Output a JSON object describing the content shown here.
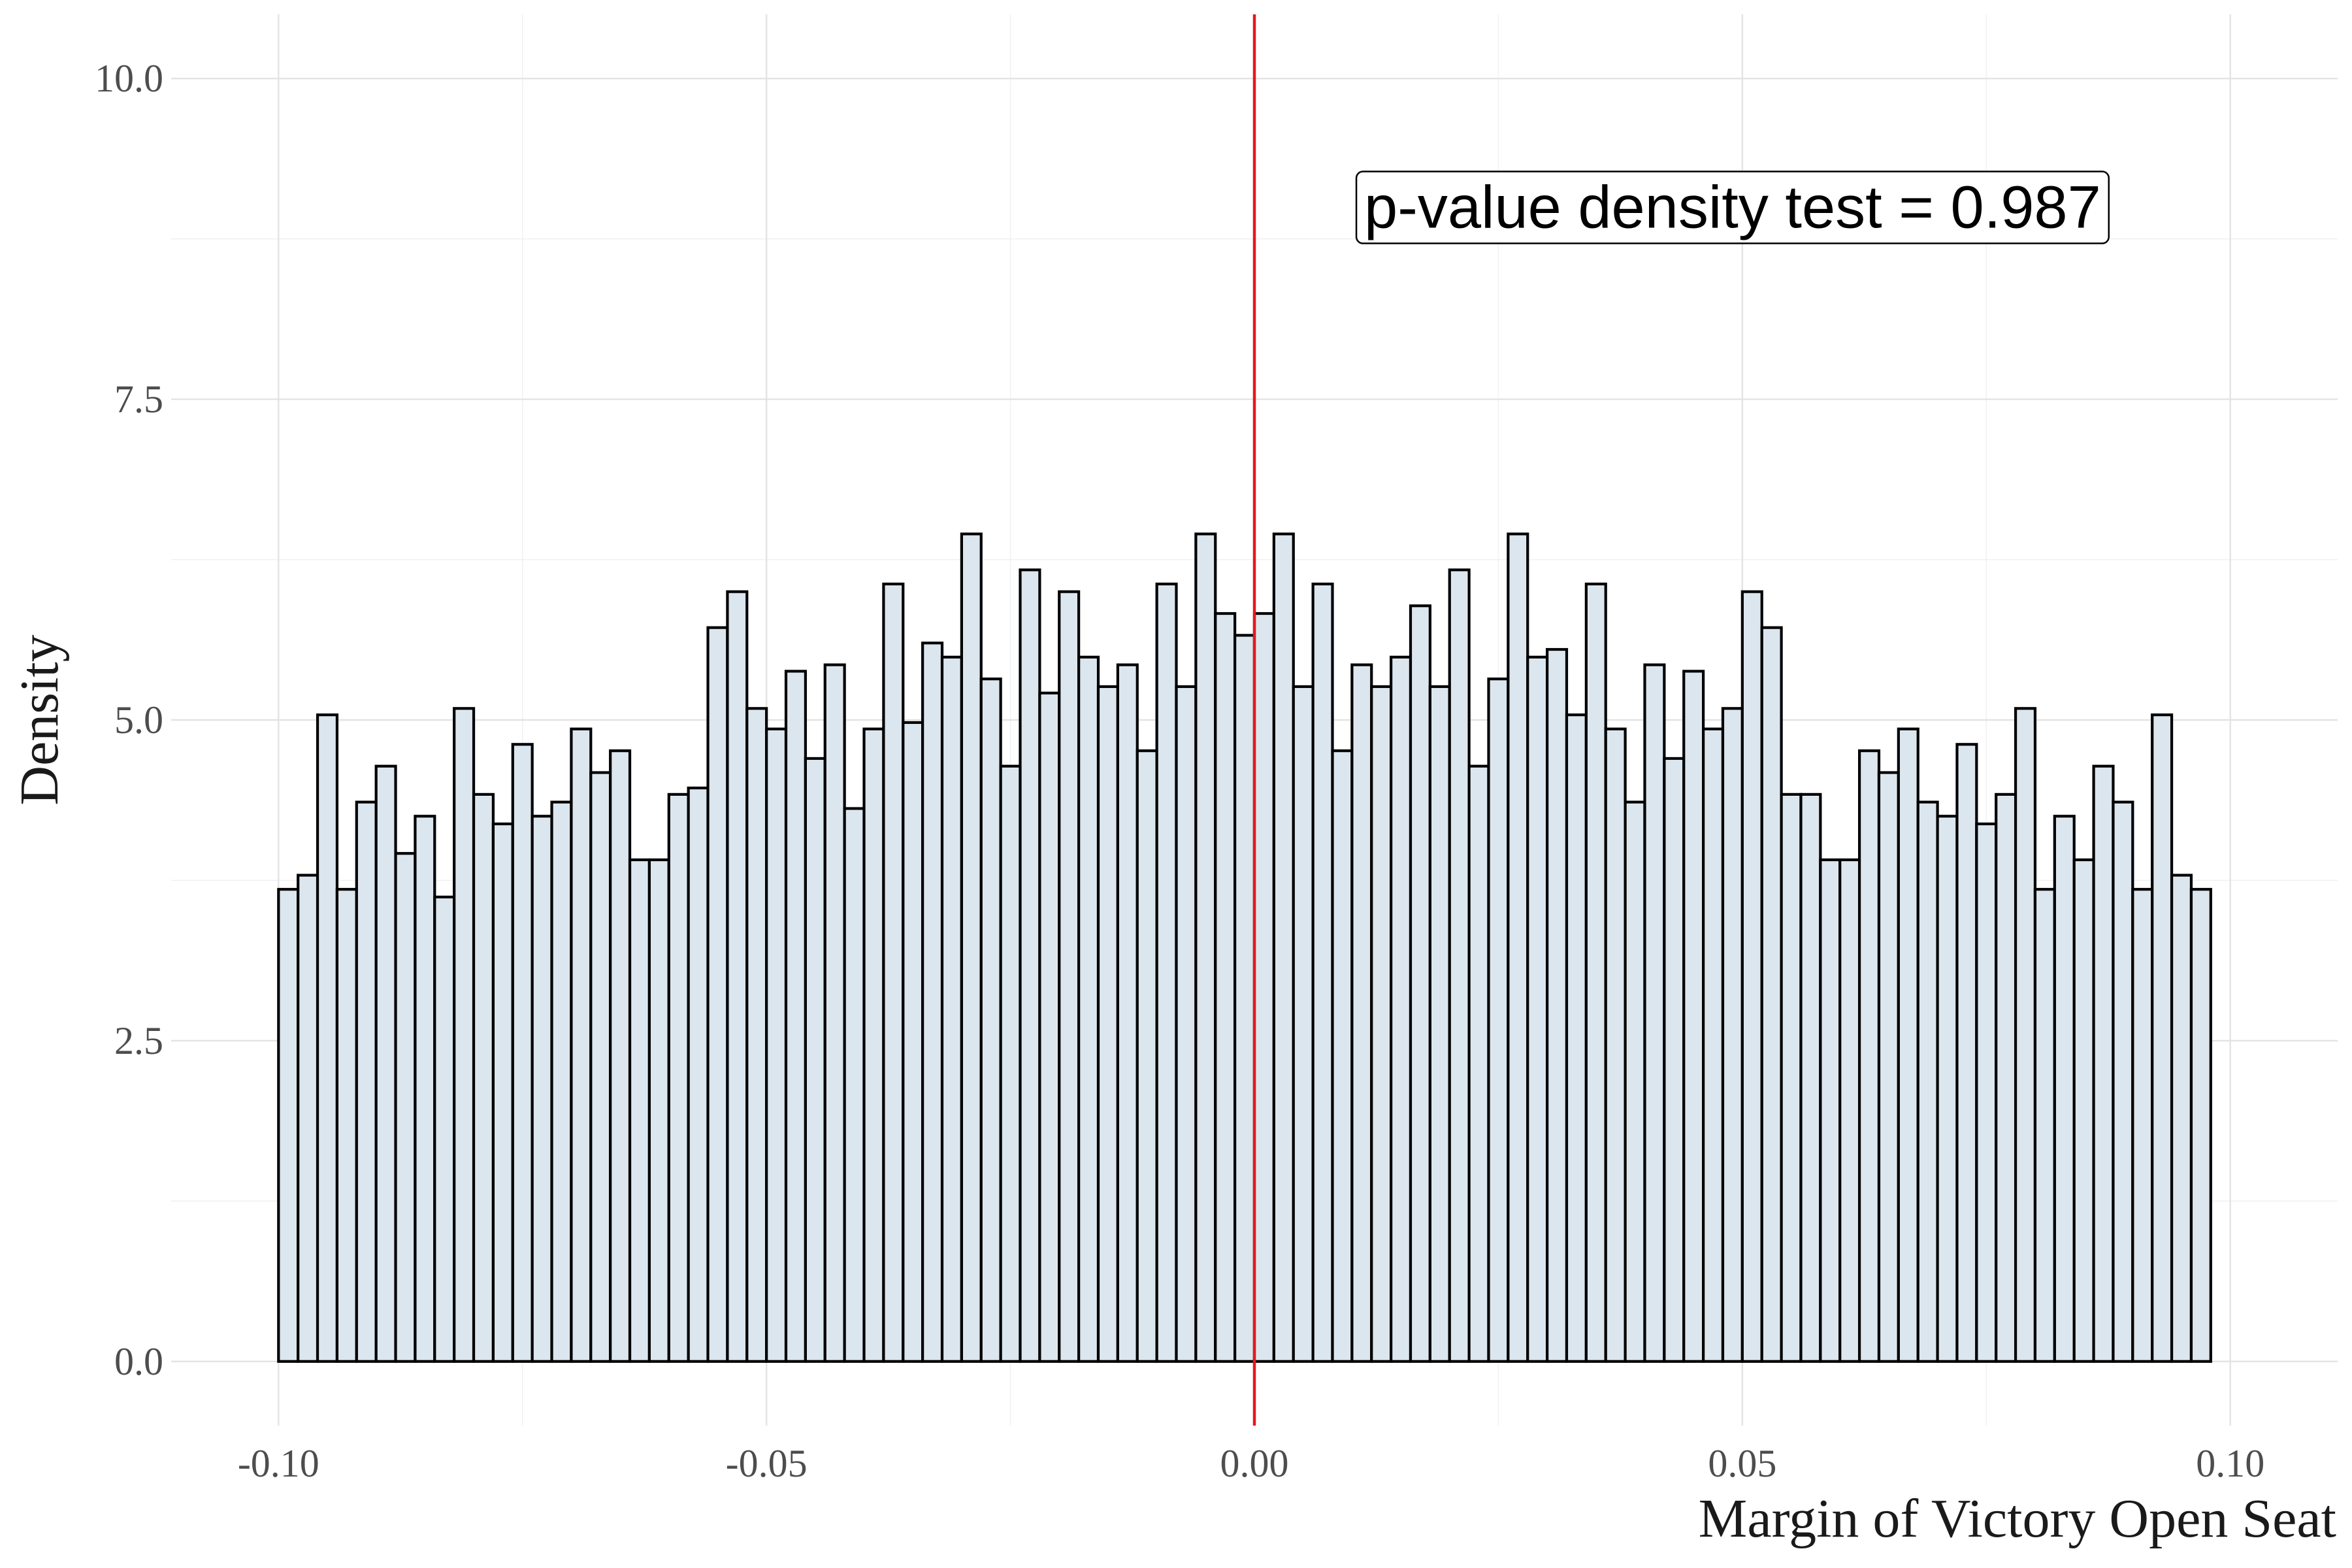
{
  "chart_data": {
    "type": "bar",
    "title": "",
    "xlabel": "Margin of Victory Open Seat",
    "ylabel": "Density",
    "xlim": [
      -0.111,
      0.111
    ],
    "ylim": [
      -0.5,
      10.5
    ],
    "x_ticks": [
      -0.1,
      -0.05,
      0.0,
      0.05,
      0.1
    ],
    "x_tick_labels": [
      "-0.10",
      "-0.05",
      "0.00",
      "0.05",
      "0.10"
    ],
    "y_ticks": [
      0,
      2.5,
      5,
      7.5,
      10
    ],
    "y_tick_labels": [
      "0.0",
      "2.5",
      "5.0",
      "7.5",
      "10.0"
    ],
    "grid": true,
    "bin_start": -0.1,
    "bin_width": 0.002,
    "values": [
      3.68,
      3.79,
      5.04,
      3.68,
      4.36,
      4.64,
      3.96,
      4.25,
      3.62,
      5.09,
      4.42,
      4.19,
      4.81,
      4.25,
      4.36,
      4.93,
      4.59,
      4.76,
      3.91,
      3.91,
      4.42,
      4.47,
      5.72,
      6.0,
      5.09,
      4.93,
      5.38,
      4.7,
      5.43,
      4.31,
      4.93,
      6.06,
      4.98,
      5.6,
      5.49,
      6.45,
      5.32,
      4.64,
      6.17,
      5.21,
      6.0,
      5.49,
      5.26,
      5.43,
      4.76,
      6.06,
      5.26,
      6.45,
      5.83,
      5.66,
      5.83,
      6.45,
      5.26,
      6.06,
      4.76,
      5.43,
      5.26,
      5.49,
      5.89,
      5.26,
      6.17,
      4.64,
      5.32,
      6.45,
      5.49,
      5.55,
      5.04,
      6.06,
      4.93,
      4.36,
      5.43,
      4.7,
      5.38,
      4.93,
      5.09,
      6.0,
      5.72,
      4.42,
      4.42,
      3.91,
      3.91,
      4.76,
      4.59,
      4.93,
      4.36,
      4.25,
      4.81,
      4.19,
      4.42,
      5.09,
      3.68,
      4.25,
      3.91,
      4.64,
      4.36,
      3.68,
      5.04,
      3.79,
      3.68
    ],
    "bar_fill": "#dce6ef",
    "bar_stroke": "#000000",
    "cutoff_x": 0.0,
    "cutoff_color": "#e31a1c",
    "annotation": {
      "text": "p-value density test =  0.987",
      "x": 0.049,
      "y": 9.0
    }
  }
}
